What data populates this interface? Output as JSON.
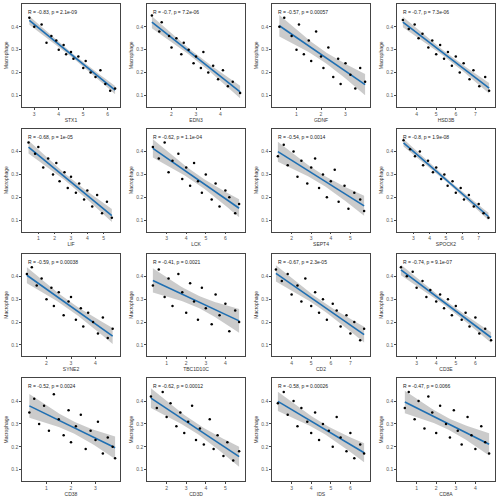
{
  "chart_data": [
    {
      "type": "scatter",
      "title": "R = -0.83, p = 2.1e-09",
      "x_label": "STX1",
      "y_label": "Macrophage",
      "color": "#000000",
      "grid": false,
      "x": [
        2.8,
        3.0,
        3.3,
        3.5,
        3.7,
        3.9,
        4.0,
        4.2,
        4.3,
        4.5,
        4.6,
        4.8,
        5.0,
        5.1,
        5.3,
        5.5,
        5.7,
        5.9,
        6.1,
        6.3
      ],
      "y": [
        0.44,
        0.4,
        0.41,
        0.33,
        0.36,
        0.34,
        0.3,
        0.32,
        0.28,
        0.29,
        0.26,
        0.27,
        0.22,
        0.25,
        0.2,
        0.18,
        0.21,
        0.15,
        0.12,
        0.13
      ],
      "xlim": [
        2.5,
        6.5
      ],
      "xticks": [
        3,
        4,
        5,
        6
      ],
      "ylim": [
        0.05,
        0.5
      ],
      "yticks": [
        0.1,
        0.2,
        0.3,
        0.4
      ]
    },
    {
      "type": "scatter",
      "title": "R = -0.7, p = 7.2e-06",
      "x_label": "EDN3",
      "y_label": "Macrophage",
      "color": "#000000",
      "grid": false,
      "x": [
        1.2,
        1.5,
        1.6,
        1.9,
        2.0,
        2.2,
        2.4,
        2.5,
        2.7,
        2.9,
        3.0,
        3.2,
        3.3,
        3.5,
        3.7,
        3.9,
        4.1,
        4.3,
        4.5,
        4.8
      ],
      "y": [
        0.45,
        0.38,
        0.42,
        0.36,
        0.31,
        0.35,
        0.28,
        0.33,
        0.3,
        0.24,
        0.27,
        0.22,
        0.29,
        0.2,
        0.23,
        0.17,
        0.21,
        0.14,
        0.16,
        0.11
      ],
      "xlim": [
        1,
        5
      ],
      "xticks": [
        2,
        3,
        4
      ],
      "ylim": [
        0.05,
        0.5
      ],
      "yticks": [
        0.1,
        0.2,
        0.3,
        0.4
      ]
    },
    {
      "type": "scatter",
      "title": "R = -0.57, p = 0.00057",
      "x_label": "GDNF",
      "y_label": "Macrophage",
      "color": "#000000",
      "grid": false,
      "x": [
        0.3,
        0.5,
        0.8,
        1.0,
        1.1,
        1.3,
        1.5,
        1.6,
        1.8,
        2.0,
        2.1,
        2.3,
        2.5,
        2.7,
        2.8,
        3.0,
        3.2,
        3.4,
        3.6,
        3.8
      ],
      "y": [
        0.4,
        0.44,
        0.36,
        0.3,
        0.41,
        0.28,
        0.34,
        0.25,
        0.38,
        0.27,
        0.22,
        0.31,
        0.18,
        0.26,
        0.15,
        0.24,
        0.19,
        0.13,
        0.22,
        0.16
      ],
      "xlim": [
        0,
        4
      ],
      "xticks": [
        1,
        2,
        3
      ],
      "ylim": [
        0.05,
        0.5
      ],
      "yticks": [
        0.1,
        0.2,
        0.3,
        0.4
      ]
    },
    {
      "type": "scatter",
      "title": "R = -0.7, p = 7.3e-06",
      "x_label": "HSD3B",
      "y_label": "Macrophage",
      "color": "#000000",
      "grid": false,
      "x": [
        3.3,
        3.6,
        3.9,
        4.1,
        4.3,
        4.6,
        4.8,
        5.0,
        5.2,
        5.4,
        5.6,
        5.8,
        6.0,
        6.2,
        6.4,
        6.7,
        6.9,
        7.2,
        7.5,
        7.7
      ],
      "y": [
        0.43,
        0.39,
        0.41,
        0.35,
        0.37,
        0.31,
        0.34,
        0.28,
        0.32,
        0.26,
        0.29,
        0.23,
        0.27,
        0.2,
        0.24,
        0.17,
        0.21,
        0.14,
        0.18,
        0.12
      ],
      "xlim": [
        3,
        8
      ],
      "xticks": [
        4,
        5,
        6,
        7
      ],
      "ylim": [
        0.05,
        0.5
      ],
      "yticks": [
        0.1,
        0.2,
        0.3,
        0.4
      ]
    },
    {
      "type": "scatter",
      "title": "R = -0.68, p = 1e-05",
      "x_label": "LIF",
      "y_label": "Macrophage",
      "color": "#000000",
      "grid": false,
      "x": [
        0.4,
        0.8,
        1.0,
        1.3,
        1.6,
        1.9,
        2.1,
        2.3,
        2.6,
        2.8,
        3.0,
        3.3,
        3.5,
        3.8,
        4.0,
        4.3,
        4.6,
        4.9,
        5.2,
        5.5
      ],
      "y": [
        0.44,
        0.39,
        0.42,
        0.33,
        0.37,
        0.3,
        0.35,
        0.27,
        0.31,
        0.24,
        0.29,
        0.22,
        0.26,
        0.19,
        0.23,
        0.16,
        0.21,
        0.13,
        0.18,
        0.11
      ],
      "xlim": [
        0,
        6
      ],
      "xticks": [
        1,
        2,
        3,
        4,
        5
      ],
      "ylim": [
        0.05,
        0.5
      ],
      "yticks": [
        0.1,
        0.2,
        0.3,
        0.4
      ]
    },
    {
      "type": "scatter",
      "title": "R = -0.62, p = 1.1e-04",
      "x_label": "LCK",
      "y_label": "Macrophage",
      "color": "#000000",
      "grid": false,
      "x": [
        2.3,
        2.6,
        2.9,
        3.1,
        3.3,
        3.6,
        3.8,
        4.0,
        4.2,
        4.4,
        4.6,
        4.8,
        5.0,
        5.3,
        5.5,
        5.7,
        6.0,
        6.2,
        6.5,
        6.7
      ],
      "y": [
        0.42,
        0.37,
        0.44,
        0.31,
        0.36,
        0.39,
        0.28,
        0.33,
        0.25,
        0.35,
        0.27,
        0.22,
        0.3,
        0.19,
        0.26,
        0.16,
        0.23,
        0.2,
        0.13,
        0.17
      ],
      "xlim": [
        2,
        7
      ],
      "xticks": [
        3,
        4,
        5,
        6
      ],
      "ylim": [
        0.05,
        0.5
      ],
      "yticks": [
        0.1,
        0.2,
        0.3,
        0.4
      ]
    },
    {
      "type": "scatter",
      "title": "R = -0.54, p = 0.0014",
      "x_label": "SEPT4",
      "y_label": "Macrophage",
      "color": "#000000",
      "grid": false,
      "x": [
        1.3,
        1.6,
        1.8,
        2.1,
        2.3,
        2.5,
        2.8,
        3.0,
        3.2,
        3.4,
        3.6,
        3.8,
        4.0,
        4.2,
        4.4,
        4.7,
        4.9,
        5.2,
        5.5,
        5.7
      ],
      "y": [
        0.38,
        0.43,
        0.34,
        0.4,
        0.29,
        0.36,
        0.26,
        0.33,
        0.37,
        0.24,
        0.3,
        0.2,
        0.27,
        0.32,
        0.18,
        0.25,
        0.15,
        0.22,
        0.19,
        0.14
      ],
      "xlim": [
        1,
        6
      ],
      "xticks": [
        2,
        3,
        4,
        5
      ],
      "ylim": [
        0.05,
        0.5
      ],
      "yticks": [
        0.1,
        0.2,
        0.3,
        0.4
      ]
    },
    {
      "type": "scatter",
      "title": "R = -0.8, p = 1.9e-08",
      "x_label": "SPOCK2",
      "y_label": "Macrophage",
      "color": "#000000",
      "grid": false,
      "x": [
        2.4,
        2.8,
        3.1,
        3.4,
        3.6,
        3.9,
        4.2,
        4.4,
        4.7,
        4.9,
        5.1,
        5.4,
        5.6,
        5.9,
        6.1,
        6.4,
        6.7,
        7.0,
        7.3,
        7.6
      ],
      "y": [
        0.45,
        0.41,
        0.38,
        0.4,
        0.34,
        0.36,
        0.31,
        0.33,
        0.28,
        0.3,
        0.25,
        0.27,
        0.22,
        0.24,
        0.19,
        0.21,
        0.16,
        0.17,
        0.13,
        0.11
      ],
      "xlim": [
        2,
        8
      ],
      "xticks": [
        3,
        4,
        5,
        6,
        7
      ],
      "ylim": [
        0.05,
        0.5
      ],
      "yticks": [
        0.1,
        0.2,
        0.3,
        0.4
      ]
    },
    {
      "type": "scatter",
      "title": "R = -0.59, p = 0.00038",
      "x_label": "SYNE2",
      "y_label": "Macrophage",
      "color": "#000000",
      "grid": false,
      "x": [
        1.2,
        1.4,
        1.6,
        1.8,
        2.0,
        2.2,
        2.3,
        2.5,
        2.7,
        2.9,
        3.0,
        3.2,
        3.4,
        3.5,
        3.7,
        3.9,
        4.1,
        4.3,
        4.5,
        4.7
      ],
      "y": [
        0.41,
        0.44,
        0.36,
        0.39,
        0.3,
        0.35,
        0.27,
        0.33,
        0.23,
        0.29,
        0.31,
        0.21,
        0.26,
        0.18,
        0.24,
        0.2,
        0.15,
        0.22,
        0.13,
        0.17
      ],
      "xlim": [
        1,
        5
      ],
      "xticks": [
        2,
        3,
        4
      ],
      "ylim": [
        0.05,
        0.5
      ],
      "yticks": [
        0.1,
        0.2,
        0.3,
        0.4
      ]
    },
    {
      "type": "scatter",
      "title": "R = -0.41, p = 0.0021",
      "x_label": "TBC1D10C",
      "y_label": "Macrophage",
      "color": "#000000",
      "grid": false,
      "x": [
        0.3,
        0.6,
        0.9,
        1.1,
        1.3,
        1.6,
        1.8,
        2.0,
        2.2,
        2.4,
        2.6,
        2.8,
        3.0,
        3.3,
        3.5,
        3.7,
        4.0,
        4.2,
        4.5,
        4.7
      ],
      "y": [
        0.36,
        0.43,
        0.31,
        0.39,
        0.27,
        0.41,
        0.33,
        0.24,
        0.37,
        0.29,
        0.21,
        0.35,
        0.26,
        0.19,
        0.32,
        0.23,
        0.28,
        0.16,
        0.25,
        0.2
      ],
      "xlim": [
        0,
        5
      ],
      "xticks": [
        1,
        2,
        3,
        4
      ],
      "ylim": [
        0.05,
        0.5
      ],
      "yticks": [
        0.1,
        0.2,
        0.3,
        0.4
      ]
    },
    {
      "type": "scatter",
      "title": "R = -0.67, p = 2.3e-05",
      "x_label": "CD2",
      "y_label": "Macrophage",
      "color": "#000000",
      "grid": false,
      "x": [
        3.2,
        3.5,
        3.8,
        4.0,
        4.3,
        4.5,
        4.7,
        5.0,
        5.2,
        5.4,
        5.6,
        5.8,
        6.1,
        6.3,
        6.5,
        6.8,
        7.0,
        7.2,
        7.5,
        7.7
      ],
      "y": [
        0.43,
        0.38,
        0.41,
        0.32,
        0.36,
        0.29,
        0.39,
        0.27,
        0.33,
        0.24,
        0.3,
        0.21,
        0.28,
        0.25,
        0.18,
        0.23,
        0.15,
        0.2,
        0.12,
        0.17
      ],
      "xlim": [
        3,
        8
      ],
      "xticks": [
        4,
        5,
        6,
        7
      ],
      "ylim": [
        0.05,
        0.5
      ],
      "yticks": [
        0.1,
        0.2,
        0.3,
        0.4
      ]
    },
    {
      "type": "scatter",
      "title": "R = -0.74, p = 9.1e-07",
      "x_label": "CD3E",
      "y_label": "Macrophage",
      "color": "#000000",
      "grid": false,
      "x": [
        2.2,
        2.5,
        2.8,
        3.0,
        3.3,
        3.5,
        3.7,
        4.0,
        4.2,
        4.4,
        4.6,
        4.8,
        5.0,
        5.3,
        5.5,
        5.7,
        6.0,
        6.2,
        6.5,
        6.8
      ],
      "y": [
        0.44,
        0.4,
        0.42,
        0.35,
        0.38,
        0.31,
        0.34,
        0.29,
        0.32,
        0.26,
        0.3,
        0.23,
        0.27,
        0.21,
        0.24,
        0.18,
        0.22,
        0.15,
        0.17,
        0.12
      ],
      "xlim": [
        2,
        7
      ],
      "xticks": [
        3,
        4,
        5,
        6
      ],
      "ylim": [
        0.05,
        0.5
      ],
      "yticks": [
        0.1,
        0.2,
        0.3,
        0.4
      ]
    },
    {
      "type": "scatter",
      "title": "R = -0.52, p = 0.0024",
      "x_label": "CD38",
      "y_label": "Macrophage",
      "color": "#000000",
      "grid": false,
      "x": [
        0.3,
        0.5,
        0.7,
        0.9,
        1.1,
        1.3,
        1.5,
        1.7,
        1.9,
        2.0,
        2.2,
        2.4,
        2.6,
        2.8,
        3.0,
        3.1,
        3.3,
        3.5,
        3.7,
        3.8
      ],
      "y": [
        0.35,
        0.41,
        0.3,
        0.38,
        0.27,
        0.43,
        0.32,
        0.25,
        0.36,
        0.22,
        0.29,
        0.34,
        0.19,
        0.27,
        0.23,
        0.31,
        0.17,
        0.24,
        0.2,
        0.15
      ],
      "xlim": [
        0,
        4
      ],
      "xticks": [
        1,
        2,
        3
      ],
      "ylim": [
        0.05,
        0.5
      ],
      "yticks": [
        0.1,
        0.2,
        0.3,
        0.4
      ]
    },
    {
      "type": "scatter",
      "title": "R = -0.62, p = 0.00012",
      "x_label": "CD3D",
      "y_label": "Macrophage",
      "color": "#000000",
      "grid": false,
      "x": [
        1.2,
        1.5,
        1.8,
        2.0,
        2.2,
        2.5,
        2.7,
        2.9,
        3.1,
        3.3,
        3.5,
        3.7,
        3.9,
        4.2,
        4.4,
        4.6,
        4.9,
        5.1,
        5.4,
        5.7
      ],
      "y": [
        0.42,
        0.37,
        0.44,
        0.33,
        0.39,
        0.29,
        0.35,
        0.26,
        0.31,
        0.38,
        0.23,
        0.28,
        0.21,
        0.32,
        0.19,
        0.25,
        0.16,
        0.22,
        0.14,
        0.18
      ],
      "xlim": [
        1,
        6
      ],
      "xticks": [
        2,
        3,
        4,
        5
      ],
      "ylim": [
        0.05,
        0.5
      ],
      "yticks": [
        0.1,
        0.2,
        0.3,
        0.4
      ]
    },
    {
      "type": "scatter",
      "title": "R = -0.58, p = 0.00026",
      "x_label": "IDS",
      "y_label": "Macrophage",
      "color": "#000000",
      "grid": false,
      "x": [
        2.3,
        2.6,
        2.8,
        3.1,
        3.3,
        3.5,
        3.8,
        4.0,
        4.2,
        4.4,
        4.6,
        4.9,
        5.1,
        5.3,
        5.5,
        5.8,
        6.0,
        6.2,
        6.5,
        6.7
      ],
      "y": [
        0.39,
        0.44,
        0.34,
        0.4,
        0.29,
        0.37,
        0.31,
        0.26,
        0.35,
        0.23,
        0.3,
        0.27,
        0.2,
        0.33,
        0.24,
        0.18,
        0.26,
        0.15,
        0.21,
        0.17
      ],
      "xlim": [
        2,
        7
      ],
      "xticks": [
        3,
        4,
        5,
        6
      ],
      "ylim": [
        0.05,
        0.5
      ],
      "yticks": [
        0.1,
        0.2,
        0.3,
        0.4
      ]
    },
    {
      "type": "scatter",
      "title": "R = -0.47, p = 0.0066",
      "x_label": "CD8A",
      "y_label": "Macrophage",
      "color": "#000000",
      "grid": false,
      "x": [
        0.4,
        0.6,
        0.9,
        1.1,
        1.4,
        1.6,
        1.8,
        2.0,
        2.2,
        2.5,
        2.7,
        2.9,
        3.1,
        3.3,
        3.6,
        3.8,
        4.0,
        4.3,
        4.5,
        4.7
      ],
      "y": [
        0.37,
        0.44,
        0.32,
        0.4,
        0.28,
        0.42,
        0.35,
        0.26,
        0.38,
        0.3,
        0.24,
        0.36,
        0.27,
        0.21,
        0.33,
        0.25,
        0.19,
        0.29,
        0.22,
        0.17
      ],
      "xlim": [
        0,
        5
      ],
      "xticks": [
        1,
        2,
        3,
        4
      ],
      "ylim": [
        0.05,
        0.5
      ],
      "yticks": [
        0.1,
        0.2,
        0.3,
        0.4
      ]
    }
  ]
}
